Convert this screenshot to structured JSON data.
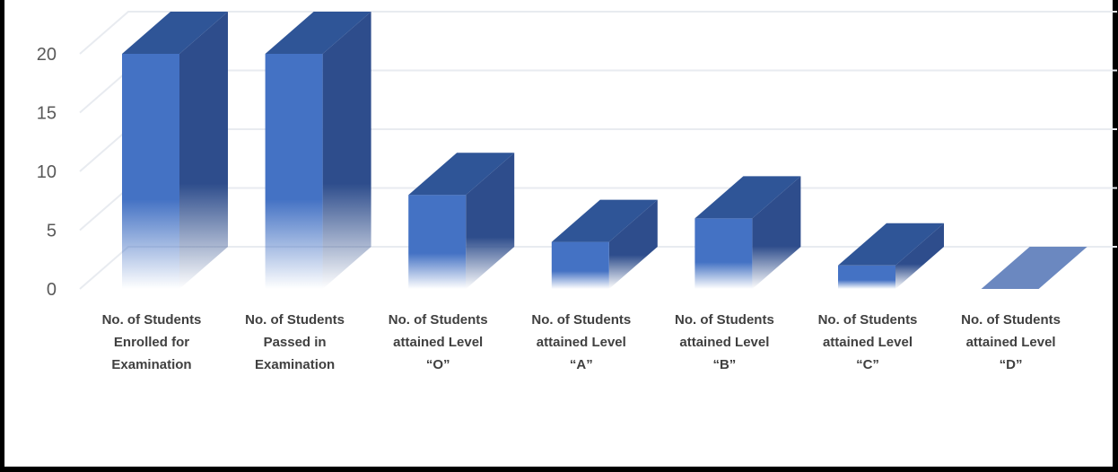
{
  "chart_data": {
    "type": "bar",
    "style": "3d-column",
    "categories": [
      [
        "No. of Students",
        "Enrolled for",
        "Examination"
      ],
      [
        "No. of Students",
        "Passed in",
        "Examination"
      ],
      [
        "No. of Students",
        "attained Level",
        "“O”"
      ],
      [
        "No. of Students",
        "attained Level",
        "“A”"
      ],
      [
        "No. of Students",
        "attained Level",
        "“B”"
      ],
      [
        "No. of Students",
        "attained Level",
        "“C”"
      ],
      [
        "No. of Students",
        "attained Level",
        "“D”"
      ]
    ],
    "values": [
      20,
      20,
      8,
      4,
      6,
      2,
      0
    ],
    "ylim": [
      0,
      20
    ],
    "yticks": [
      "0",
      "5",
      "10",
      "15",
      "20"
    ],
    "grid": true,
    "title": "",
    "xlabel": "",
    "ylabel": ""
  },
  "colors": {
    "front": "#4472c4",
    "side": "#2e4d8c",
    "top": "#2f5597",
    "grid": "#e8ebf0",
    "zero_bar": "#6b88c0"
  }
}
